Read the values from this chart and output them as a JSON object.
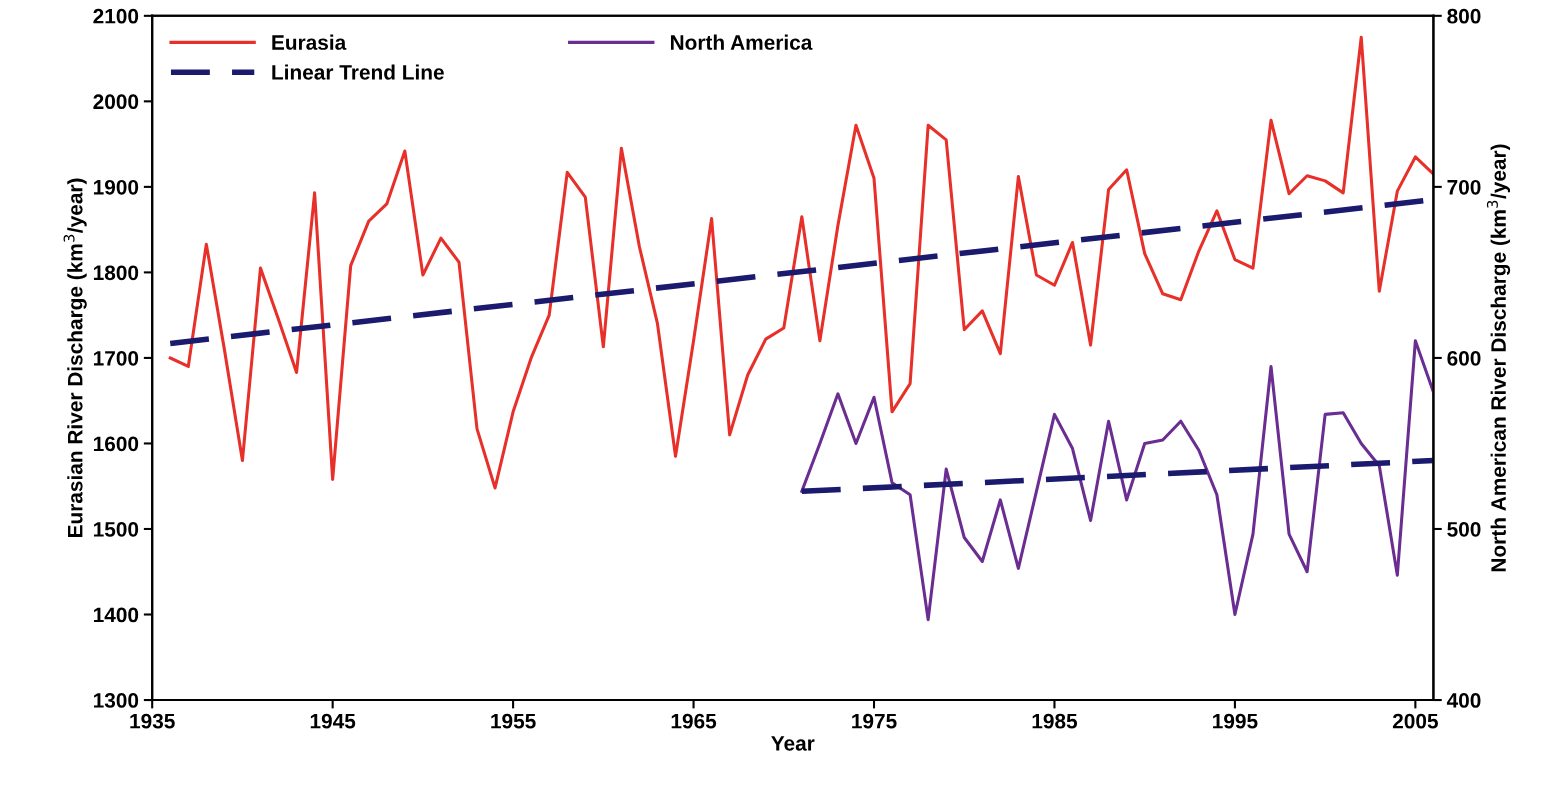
{
  "chart_data": {
    "type": "line",
    "xlabel": "Year",
    "ylabel": "Eurasian River Discharge (km$^{3}$/year)",
    "y2label": "North American River Discharge (km$^{3}$/year)",
    "xlim": [
      1935,
      2006
    ],
    "xticks": [
      1935,
      1945,
      1955,
      1965,
      1975,
      1985,
      1995,
      2005
    ],
    "ylim": [
      1300,
      2100
    ],
    "yticks": [
      1300,
      1400,
      1500,
      1600,
      1700,
      1800,
      1900,
      2000,
      2100
    ],
    "y2lim": [
      400,
      800
    ],
    "y2ticks": [
      400,
      500,
      600,
      700,
      800
    ],
    "grid": false,
    "legend": "top left",
    "marker": "none",
    "series": [
      {
        "name": "Eurasia",
        "color": "#e8302a",
        "axis": "y",
        "line_style": "solid",
        "x": [
          1936,
          1937,
          1938,
          1939,
          1940,
          1941,
          1942,
          1943,
          1944,
          1945,
          1946,
          1947,
          1948,
          1949,
          1950,
          1951,
          1952,
          1953,
          1954,
          1955,
          1956,
          1957,
          1958,
          1959,
          1960,
          1961,
          1962,
          1963,
          1964,
          1965,
          1966,
          1967,
          1968,
          1969,
          1970,
          1971,
          1972,
          1973,
          1974,
          1975,
          1976,
          1977,
          1978,
          1979,
          1980,
          1981,
          1982,
          1983,
          1984,
          1985,
          1986,
          1987,
          1988,
          1989,
          1990,
          1991,
          1992,
          1993,
          1994,
          1995,
          1996,
          1997,
          1998,
          1999,
          2000,
          2001,
          2002,
          2003,
          2004,
          2005,
          2006
        ],
        "values": [
          1700,
          1690,
          1833,
          1710,
          1580,
          1805,
          1745,
          1683,
          1893,
          1558,
          1808,
          1860,
          1880,
          1942,
          1797,
          1840,
          1812,
          1617,
          1548,
          1637,
          1700,
          1750,
          1917,
          1888,
          1713,
          1945,
          1830,
          1740,
          1585,
          1720,
          1863,
          1610,
          1680,
          1722,
          1735,
          1865,
          1720,
          1855,
          1972,
          1910,
          1637,
          1670,
          1972,
          1955,
          1733,
          1755,
          1705,
          1912,
          1797,
          1785,
          1835,
          1715,
          1897,
          1920,
          1822,
          1775,
          1768,
          1825,
          1872,
          1815,
          1805,
          1978,
          1892,
          1913,
          1907,
          1893,
          2075,
          1778,
          1895,
          1935,
          1915
        ]
      },
      {
        "name": "Linear Trend Line",
        "color": "#1a1a6e",
        "axis": "y",
        "line_style": "dashed",
        "x": [
          1936,
          2006
        ],
        "values": [
          1717,
          1885
        ]
      },
      {
        "name": "North America",
        "color": "#6a2d91",
        "axis": "y2",
        "line_style": "solid",
        "x": [
          1971,
          1972,
          1973,
          1974,
          1975,
          1976,
          1977,
          1978,
          1979,
          1980,
          1981,
          1982,
          1983,
          1984,
          1985,
          1986,
          1987,
          1988,
          1989,
          1990,
          1991,
          1992,
          1993,
          1994,
          1995,
          1996,
          1997,
          1998,
          1999,
          2000,
          2001,
          2002,
          2003,
          2004,
          2005,
          2006
        ],
        "values": [
          522,
          550,
          579,
          550,
          577,
          527,
          520,
          447,
          535,
          495,
          481,
          517,
          477,
          522,
          567,
          547,
          505,
          563,
          517,
          550,
          552,
          563,
          546,
          520,
          450,
          497,
          595,
          497,
          475,
          567,
          568,
          550,
          537,
          473,
          610,
          580
        ]
      },
      {
        "color": "#1a1a6e",
        "axis": "y2",
        "line_style": "dashed",
        "x": [
          1971,
          2006
        ],
        "values": [
          522,
          540
        ]
      }
    ]
  }
}
